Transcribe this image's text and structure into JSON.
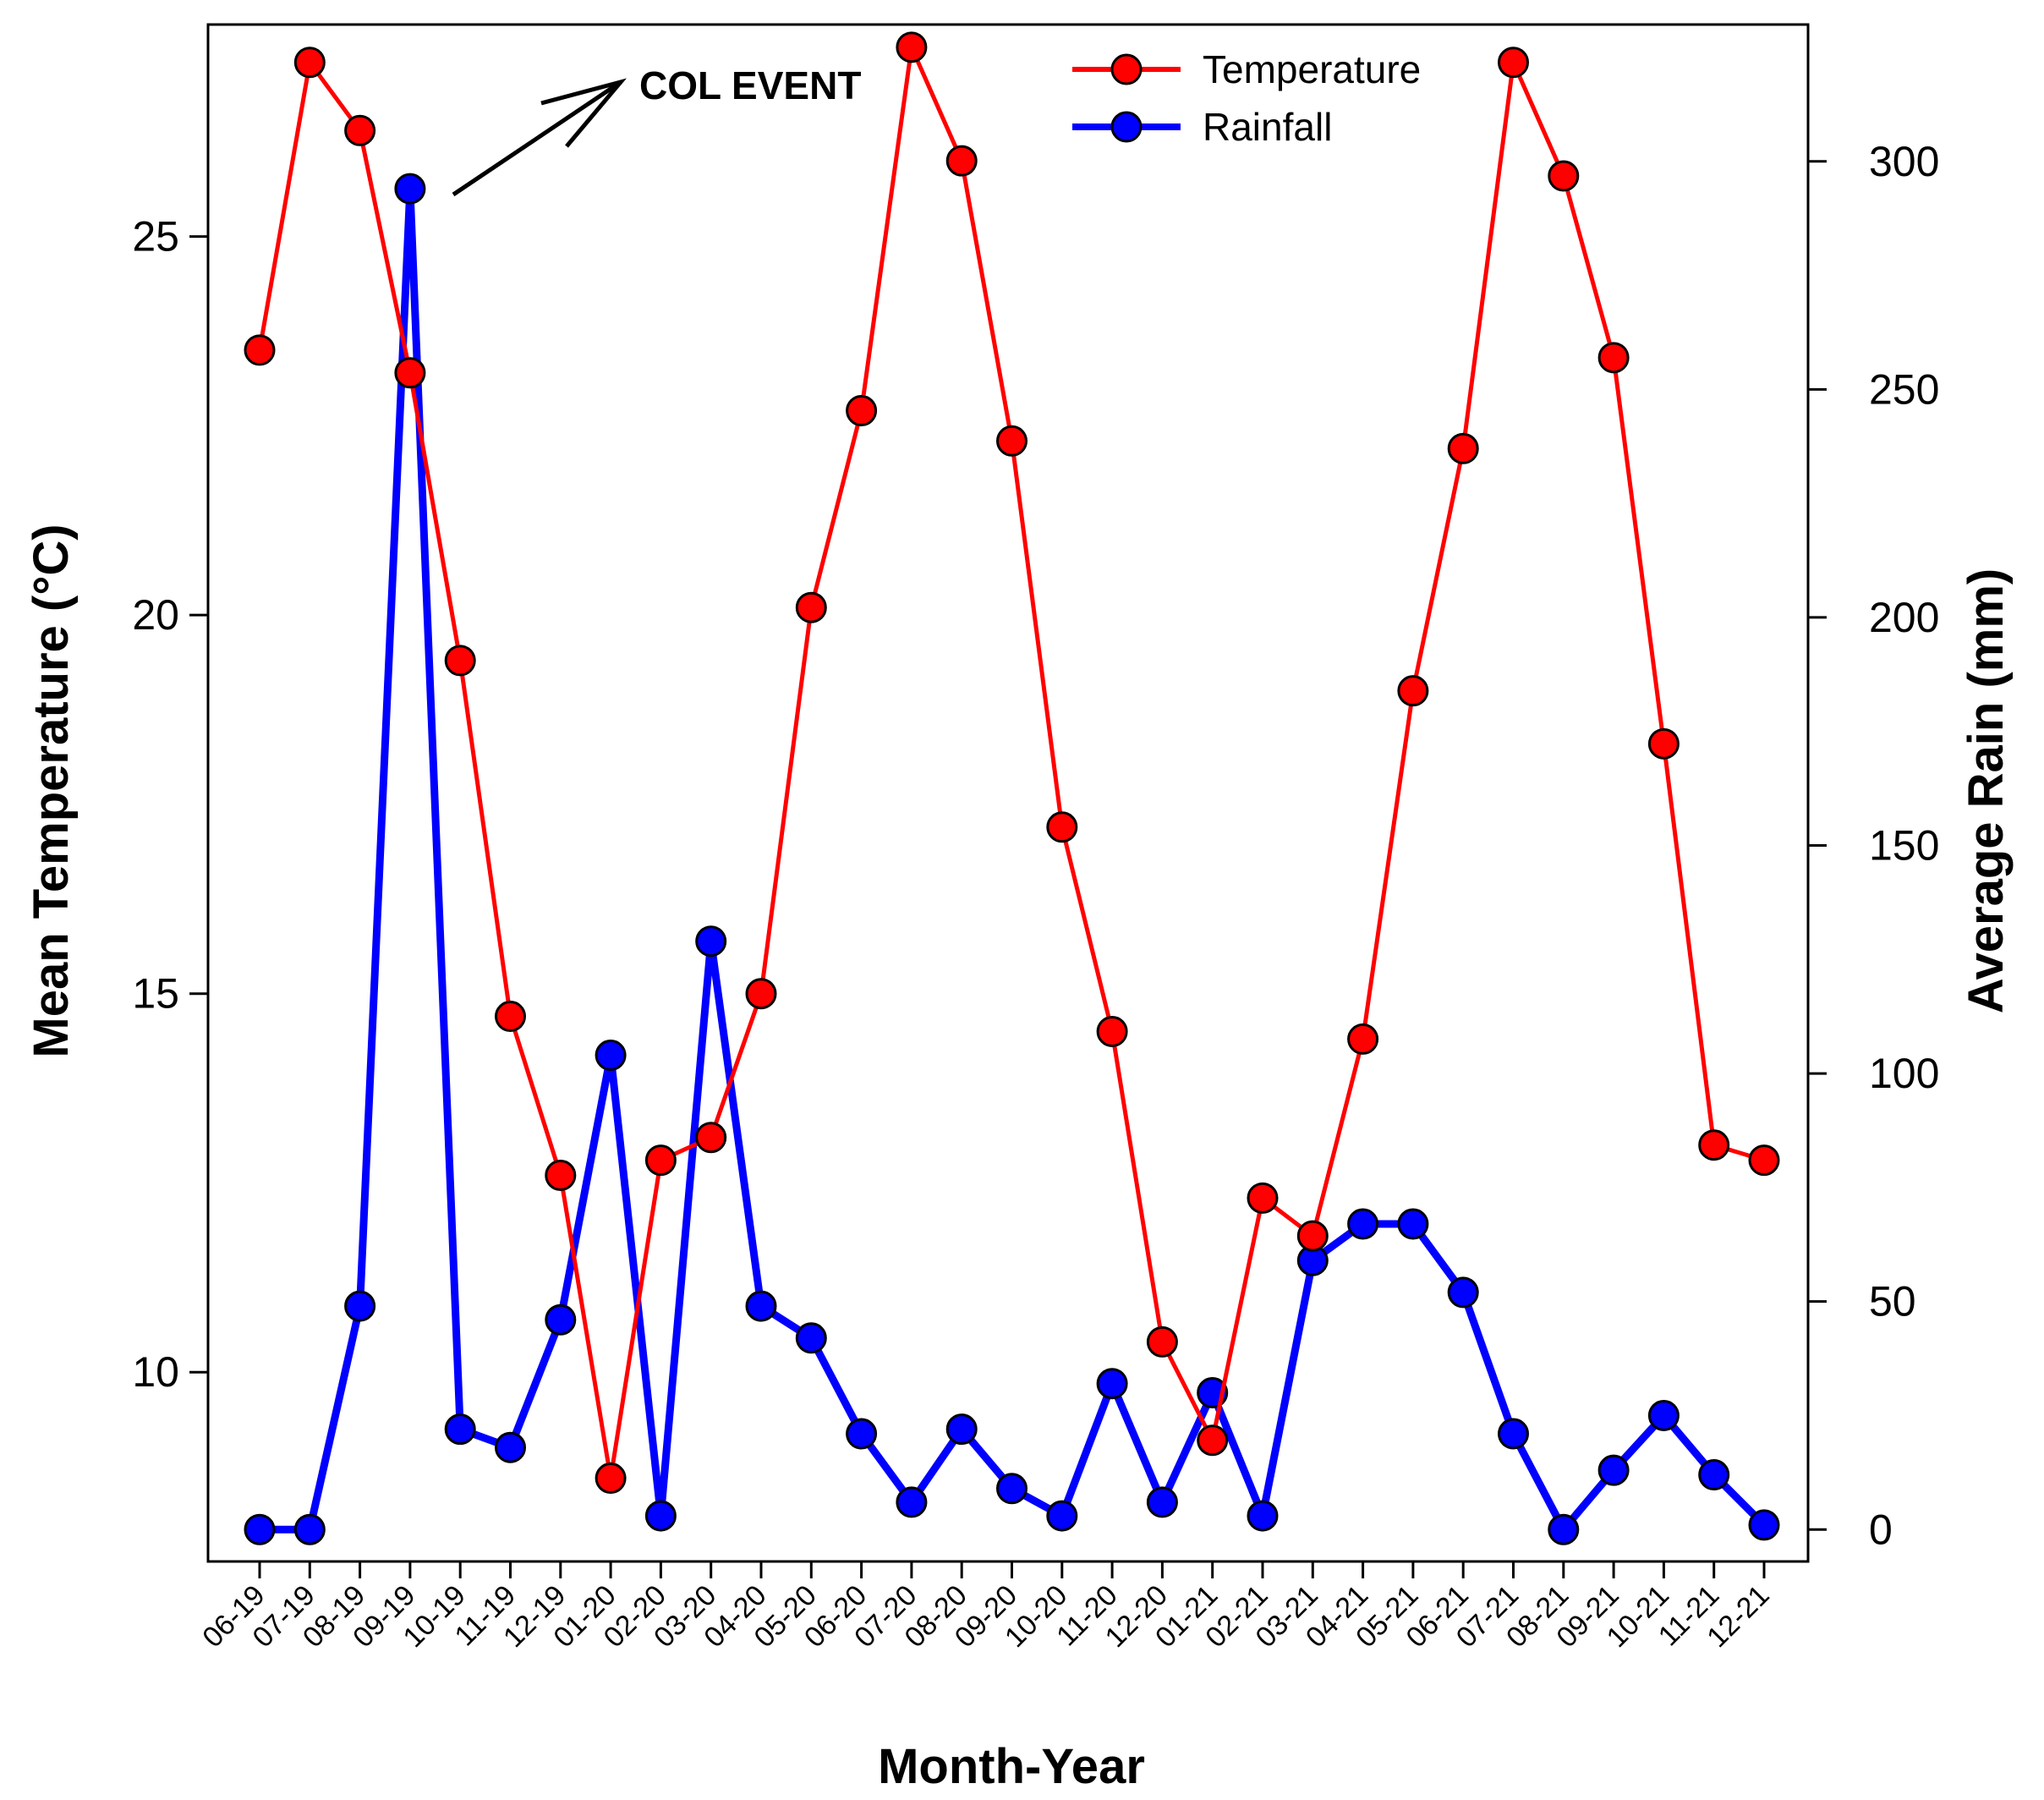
{
  "chart_data": {
    "type": "line",
    "title": "",
    "xlabel": "Month-Year",
    "ylabel": "Mean Temperature (°C)",
    "y2label": "Average Rain (mm)",
    "categories": [
      "06-19",
      "07-19",
      "08-19",
      "09-19",
      "10-19",
      "11-19",
      "12-19",
      "01-20",
      "02-20",
      "03-20",
      "04-20",
      "05-20",
      "06-20",
      "07-20",
      "08-20",
      "09-20",
      "10-20",
      "11-20",
      "12-20",
      "01-21",
      "02-21",
      "03-21",
      "04-21",
      "05-21",
      "06-21",
      "07-21",
      "08-21",
      "09-21",
      "10-21",
      "11-21",
      "12-21"
    ],
    "ylim": [
      7.5,
      27.8
    ],
    "y2lim": [
      -7,
      330
    ],
    "yticks": [
      10,
      15,
      20,
      25
    ],
    "y2ticks": [
      0,
      50,
      100,
      150,
      200,
      250,
      300
    ],
    "legend_position": "top-center",
    "grid": false,
    "series": [
      {
        "name": "Temperature",
        "axis": "left",
        "color": "#ff0000",
        "values": [
          23.5,
          27.3,
          26.4,
          23.2,
          19.4,
          14.7,
          12.6,
          8.6,
          12.8,
          13.1,
          15.0,
          20.1,
          22.7,
          27.5,
          26.0,
          22.3,
          17.2,
          14.5,
          10.4,
          9.1,
          12.3,
          11.8,
          14.4,
          19.0,
          22.2,
          27.3,
          25.8,
          23.4,
          18.3,
          13.0,
          12.8
        ]
      },
      {
        "name": "Rainfall",
        "axis": "right",
        "color": "#0000ff",
        "values": [
          0,
          0,
          49,
          294,
          22,
          18,
          46,
          104,
          3,
          129,
          49,
          42,
          21,
          6,
          22,
          9,
          3,
          32,
          6,
          30,
          3,
          59,
          67,
          67,
          52,
          21,
          0,
          13,
          25,
          12,
          1
        ]
      }
    ],
    "annotations": [
      {
        "text": "COL EVENT",
        "points_to": "09-19 Rainfall peak"
      }
    ]
  }
}
